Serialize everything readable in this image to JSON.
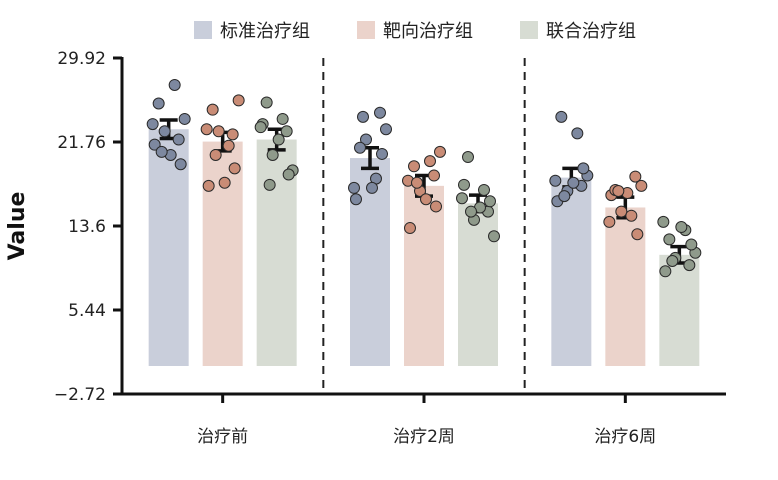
{
  "chart_data": {
    "type": "bar",
    "title": "",
    "xlabel": "",
    "ylabel": "Value",
    "ylim": [
      -2.72,
      29.92
    ],
    "yticks": [
      29.92,
      21.76,
      13.6,
      5.44,
      -2.72
    ],
    "ytick_labels": [
      "29.92",
      "21.76",
      "13.6",
      "5.44",
      "−2.72"
    ],
    "categories": [
      "治疗前",
      "治疗2周",
      "治疗6周"
    ],
    "grid": false,
    "legend": {
      "position": "top-center"
    },
    "group_separators": "dashed",
    "series": [
      {
        "name": "标准治疗组",
        "color": "#c9cedb",
        "dot_color": "#7d889f",
        "values": [
          23.0,
          20.2,
          18.3
        ],
        "errors": [
          0.9,
          1.0,
          0.9
        ],
        "points": [
          [
            21.5,
            22.0,
            22.8,
            24.0,
            25.5,
            27.3,
            23.5,
            20.5,
            19.6,
            20.8
          ],
          [
            16.2,
            24.6,
            22.0,
            23.0,
            21.2,
            18.2,
            17.3,
            17.3,
            20.6,
            24.2
          ],
          [
            16.0,
            17.5,
            17.0,
            18.5,
            24.2,
            22.6,
            18.0,
            17.8,
            19.2,
            16.5
          ]
        ]
      },
      {
        "name": "靶向治疗组",
        "color": "#ebd3cb",
        "dot_color": "#c98c76",
        "values": [
          21.8,
          17.5,
          15.4
        ],
        "errors": [
          0.9,
          1.0,
          1.0
        ],
        "points": [
          [
            17.5,
            22.5,
            22.8,
            25.8,
            24.9,
            21.4,
            23.0,
            17.8,
            19.2,
            20.5
          ],
          [
            13.4,
            18.5,
            17.0,
            20.8,
            19.4,
            19.9,
            18.0,
            16.2,
            15.5,
            17.8
          ],
          [
            16.6,
            18.4,
            15.0,
            17.5,
            17.1,
            14.6,
            14.0,
            16.8,
            12.8,
            17.0
          ]
        ]
      },
      {
        "name": "联合治疗组",
        "color": "#d7dcd3",
        "dot_color": "#8f9a8b",
        "values": [
          22.0,
          15.8,
          10.8
        ],
        "errors": [
          1.0,
          0.8,
          0.8
        ],
        "points": [
          [
            23.5,
            22.8,
            20.5,
            19.0,
            25.6,
            24.0,
            23.2,
            22.0,
            18.6,
            17.6
          ],
          [
            17.6,
            15.0,
            14.2,
            12.6,
            20.3,
            17.1,
            16.3,
            15.4,
            16.0,
            15.0
          ],
          [
            9.2,
            9.8,
            10.5,
            11.0,
            12.3,
            13.2,
            14.0,
            13.5,
            11.8,
            10.2
          ]
        ]
      }
    ]
  }
}
